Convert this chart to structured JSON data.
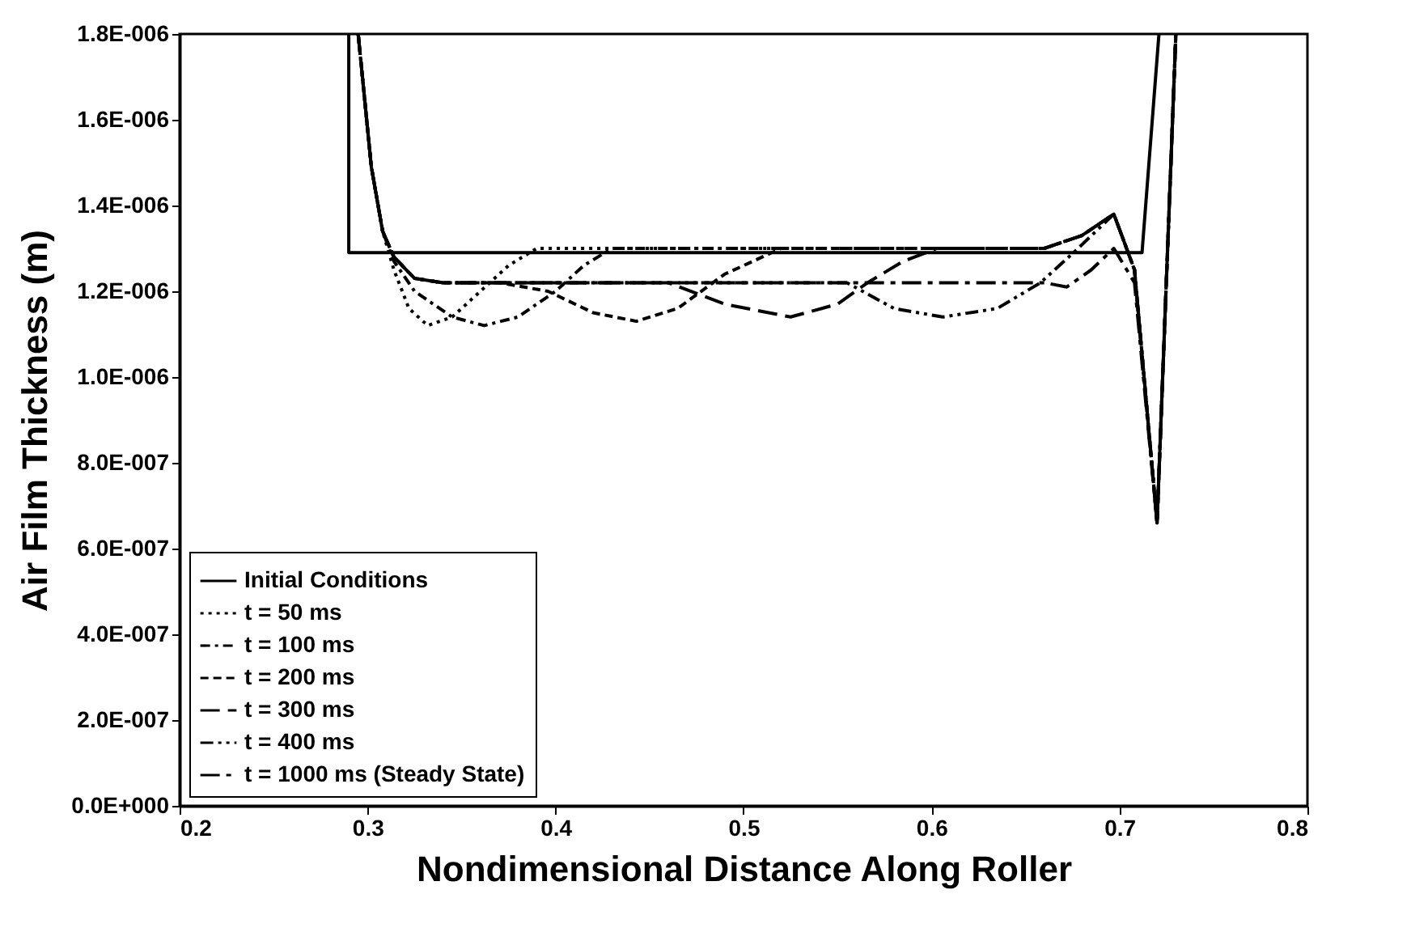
{
  "chart_data": {
    "type": "line",
    "xlabel": "Nondimensional Distance Along Roller",
    "ylabel": "Air Film Thickness (m)",
    "xlim": [
      0.2,
      0.8
    ],
    "xticks": [
      0.2,
      0.3,
      0.4,
      0.5,
      0.6,
      0.7,
      0.8
    ],
    "ylim": [
      0,
      1.8e-06
    ],
    "yticks": [
      {
        "value": 0,
        "label": "0.0E+000"
      },
      {
        "value": 2e-07,
        "label": "2.0E-007"
      },
      {
        "value": 4e-07,
        "label": "4.0E-007"
      },
      {
        "value": 6e-07,
        "label": "6.0E-007"
      },
      {
        "value": 8e-07,
        "label": "8.0E-007"
      },
      {
        "value": 1e-06,
        "label": "1.0E-006"
      },
      {
        "value": 1.2e-06,
        "label": "1.2E-006"
      },
      {
        "value": 1.4e-06,
        "label": "1.4E-006"
      },
      {
        "value": 1.6e-06,
        "label": "1.6E-006"
      },
      {
        "value": 1.8e-06,
        "label": "1.8E-006"
      }
    ],
    "grid": false,
    "legend": "bottom left",
    "series": [
      {
        "name": "Initial Conditions",
        "color": "#000000",
        "line_style": "solid",
        "x": [
          0.29,
          0.29,
          0.712,
          0.721
        ],
        "values": [
          1.8e-06,
          1.29e-06,
          1.29e-06,
          1.8e-06
        ]
      },
      {
        "name": "t = 50 ms",
        "color": "#000000",
        "line_style": "dotted",
        "x": [
          0.295,
          0.302,
          0.308,
          0.314,
          0.322,
          0.332,
          0.345,
          0.36,
          0.375,
          0.39,
          0.5,
          0.66,
          0.68,
          0.697,
          0.708,
          0.72,
          0.73
        ],
        "values": [
          1.8e-06,
          1.49e-06,
          1.34e-06,
          1.25e-06,
          1.16e-06,
          1.12e-06,
          1.14e-06,
          1.2e-06,
          1.26e-06,
          1.3e-06,
          1.3e-06,
          1.3e-06,
          1.33e-06,
          1.38e-06,
          1.25e-06,
          6.6e-07,
          1.8e-06
        ]
      },
      {
        "name": "t = 100 ms",
        "color": "#000000",
        "line_style": "dashdot",
        "x": [
          0.295,
          0.302,
          0.308,
          0.314,
          0.325,
          0.345,
          0.362,
          0.38,
          0.4,
          0.415,
          0.43,
          0.5,
          0.66,
          0.68,
          0.697,
          0.708,
          0.72,
          0.73
        ],
        "values": [
          1.8e-06,
          1.49e-06,
          1.34e-06,
          1.27e-06,
          1.2e-06,
          1.14e-06,
          1.12e-06,
          1.14e-06,
          1.2e-06,
          1.26e-06,
          1.3e-06,
          1.3e-06,
          1.3e-06,
          1.33e-06,
          1.38e-06,
          1.25e-06,
          6.6e-07,
          1.8e-06
        ]
      },
      {
        "name": "t = 200 ms",
        "color": "#000000",
        "line_style": "dashed",
        "x": [
          0.295,
          0.302,
          0.308,
          0.314,
          0.325,
          0.34,
          0.37,
          0.396,
          0.42,
          0.443,
          0.465,
          0.49,
          0.52,
          0.6,
          0.66,
          0.68,
          0.697,
          0.708,
          0.72,
          0.73
        ],
        "values": [
          1.8e-06,
          1.49e-06,
          1.34e-06,
          1.28e-06,
          1.23e-06,
          1.22e-06,
          1.22e-06,
          1.2e-06,
          1.15e-06,
          1.13e-06,
          1.16e-06,
          1.24e-06,
          1.3e-06,
          1.3e-06,
          1.3e-06,
          1.33e-06,
          1.38e-06,
          1.25e-06,
          6.6e-07,
          1.8e-06
        ]
      },
      {
        "name": "t = 300 ms",
        "color": "#000000",
        "line_style": "longdash",
        "x": [
          0.295,
          0.302,
          0.308,
          0.314,
          0.325,
          0.34,
          0.46,
          0.49,
          0.525,
          0.55,
          0.566,
          0.585,
          0.603,
          0.66,
          0.68,
          0.697,
          0.708,
          0.72,
          0.73
        ],
        "values": [
          1.8e-06,
          1.49e-06,
          1.34e-06,
          1.28e-06,
          1.23e-06,
          1.22e-06,
          1.22e-06,
          1.17e-06,
          1.14e-06,
          1.17e-06,
          1.22e-06,
          1.27e-06,
          1.3e-06,
          1.3e-06,
          1.33e-06,
          1.38e-06,
          1.25e-06,
          6.6e-07,
          1.8e-06
        ]
      },
      {
        "name": "t = 400 ms",
        "color": "#000000",
        "line_style": "dashdotdot",
        "x": [
          0.295,
          0.302,
          0.308,
          0.314,
          0.325,
          0.34,
          0.555,
          0.58,
          0.606,
          0.635,
          0.658,
          0.678,
          0.697,
          0.708,
          0.72,
          0.73
        ],
        "values": [
          1.8e-06,
          1.49e-06,
          1.34e-06,
          1.28e-06,
          1.23e-06,
          1.22e-06,
          1.22e-06,
          1.16e-06,
          1.14e-06,
          1.16e-06,
          1.22e-06,
          1.3e-06,
          1.38e-06,
          1.25e-06,
          6.6e-07,
          1.8e-06
        ]
      },
      {
        "name": "t = 1000 ms (Steady State)",
        "color": "#000000",
        "line_style": "longdashdot",
        "x": [
          0.295,
          0.302,
          0.308,
          0.314,
          0.325,
          0.34,
          0.66,
          0.672,
          0.685,
          0.697,
          0.708,
          0.72,
          0.73
        ],
        "values": [
          1.8e-06,
          1.49e-06,
          1.34e-06,
          1.28e-06,
          1.23e-06,
          1.22e-06,
          1.22e-06,
          1.21e-06,
          1.25e-06,
          1.3e-06,
          1.22e-06,
          6.6e-07,
          1.8e-06
        ]
      }
    ]
  }
}
